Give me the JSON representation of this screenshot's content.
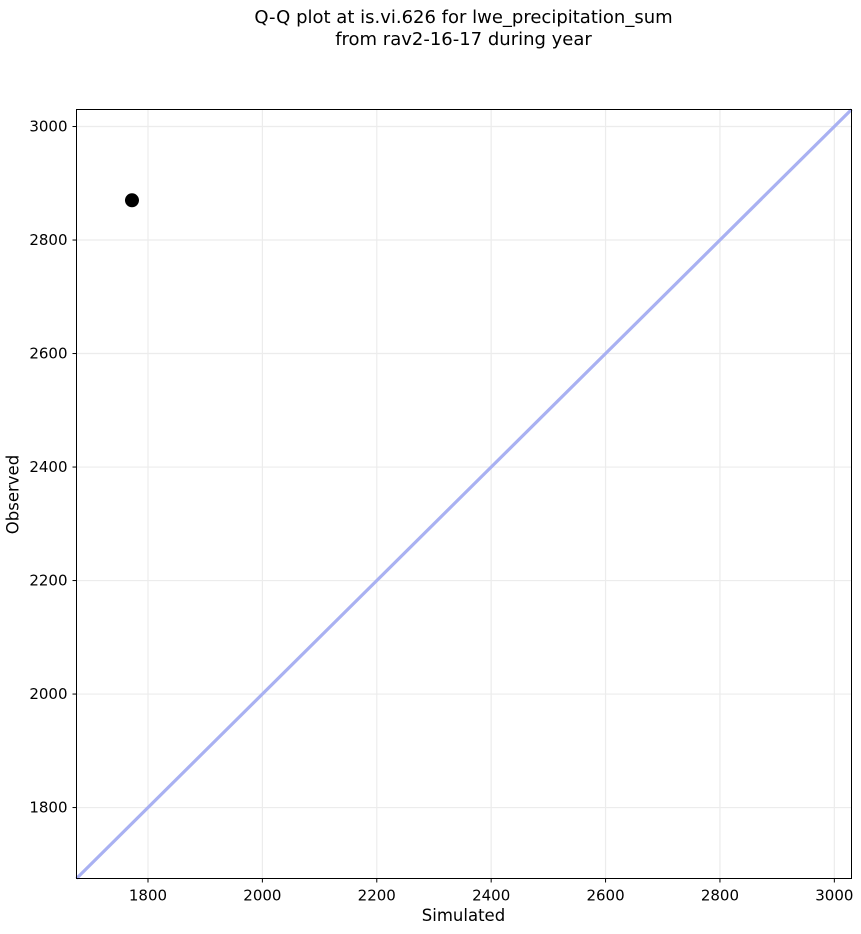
{
  "figure": {
    "title_line1": "Q-Q plot at is.vi.626 for lwe_precipitation_sum",
    "title_line2": "from rav2-16-17 during year"
  },
  "chart_data": {
    "type": "scatter",
    "title": "Q-Q plot at is.vi.626 for lwe_precipitation_sum\nfrom rav2-16-17 during year",
    "xlabel": "Simulated",
    "ylabel": "Observed",
    "xlim": [
      1675,
      3030
    ],
    "ylim": [
      1675,
      3030
    ],
    "xticks": [
      1800,
      2000,
      2200,
      2400,
      2600,
      2800,
      3000
    ],
    "yticks": [
      1800,
      2000,
      2200,
      2400,
      2600,
      2800,
      3000
    ],
    "grid": true,
    "grid_color": "#ececec",
    "background_color": "#ffffff",
    "spine_color": "#000000",
    "tick_label_color": "#000000",
    "points": [
      {
        "x": 1772,
        "y": 2870
      }
    ],
    "point_color": "#000000",
    "point_radius": 7,
    "identity_line": {
      "from": [
        1675,
        1675
      ],
      "to": [
        3030,
        3030
      ],
      "color": "#a9b1f2",
      "width": 3.2
    },
    "legend": null
  }
}
